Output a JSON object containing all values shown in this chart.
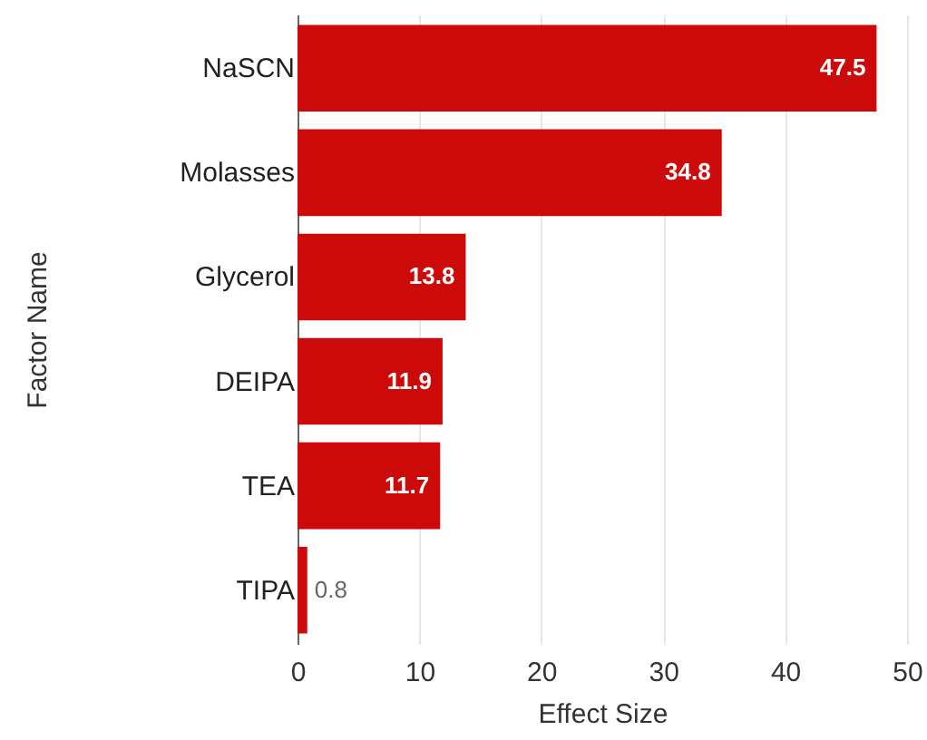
{
  "chart_data": {
    "type": "bar",
    "orientation": "horizontal",
    "xlabel": "Effect Size",
    "ylabel": "Factor Name",
    "categories": [
      "NaSCN",
      "Molasses",
      "Glycerol",
      "DEIPA",
      "TEA",
      "TIPA"
    ],
    "values": [
      47.5,
      34.8,
      13.8,
      11.9,
      11.7,
      0.8
    ],
    "color": "#cc0a0a",
    "xlim": [
      0,
      50
    ],
    "xticks": [
      0,
      10,
      20,
      30,
      40,
      50
    ],
    "grid": "x",
    "data_labels": true
  }
}
